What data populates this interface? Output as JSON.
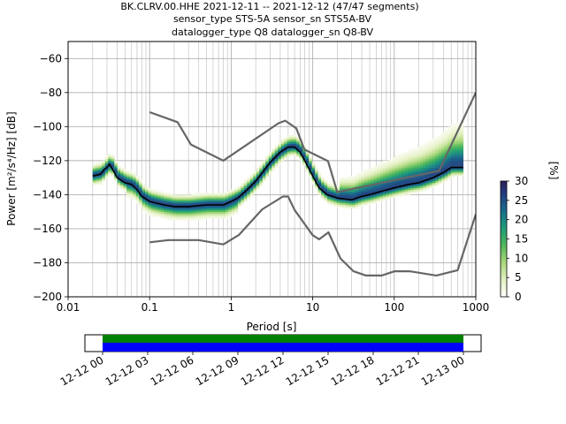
{
  "title_lines": [
    "BK.CLRV.00.HHE   2021-12-11 -- 2021-12-12  (47/47 segments)",
    "sensor_type STS-5A sensor_sn STS5A-BV",
    "datalogger_type Q8 datalogger_sn Q8-BV"
  ],
  "chart_data": {
    "type": "heatmap",
    "xlabel": "Period [s]",
    "ylabel": "Power [m²/s⁴/Hz] [dB]",
    "x_scale": "log",
    "xlim": [
      0.01,
      1000
    ],
    "ylim": [
      -200,
      -50
    ],
    "x_ticks": [
      0.01,
      0.1,
      1,
      10,
      100,
      1000
    ],
    "x_tick_labels": [
      "0.01",
      "0.1",
      "1",
      "10",
      "100",
      "1000"
    ],
    "y_ticks": [
      -200,
      -180,
      -160,
      -140,
      -120,
      -100,
      -80,
      -60
    ],
    "y_tick_labels": [
      "−200",
      "−180",
      "−160",
      "−140",
      "−120",
      "−100",
      "−80",
      "−60"
    ],
    "grid": true,
    "colorbar": {
      "label": "[%]",
      "range": [
        0,
        30
      ],
      "ticks": [
        0,
        5,
        10,
        15,
        20,
        25,
        30
      ],
      "tick_labels": [
        "0",
        "5",
        "10",
        "15",
        "20",
        "25",
        "30"
      ],
      "colormap": "white-green-teal-navy"
    },
    "mean_curve": {
      "color": "#000000",
      "points": [
        [
          0.02,
          -129
        ],
        [
          0.025,
          -128
        ],
        [
          0.028,
          -125
        ],
        [
          0.03,
          -124
        ],
        [
          0.032,
          -122
        ],
        [
          0.035,
          -125
        ],
        [
          0.04,
          -130
        ],
        [
          0.05,
          -133
        ],
        [
          0.06,
          -134
        ],
        [
          0.07,
          -137
        ],
        [
          0.08,
          -141
        ],
        [
          0.1,
          -144
        ],
        [
          0.15,
          -146
        ],
        [
          0.2,
          -147
        ],
        [
          0.3,
          -147
        ],
        [
          0.5,
          -146
        ],
        [
          0.8,
          -146
        ],
        [
          1,
          -144
        ],
        [
          1.2,
          -142
        ],
        [
          1.5,
          -138
        ],
        [
          2,
          -132
        ],
        [
          2.5,
          -126
        ],
        [
          3,
          -121
        ],
        [
          4,
          -115
        ],
        [
          5,
          -112
        ],
        [
          6,
          -112
        ],
        [
          7,
          -115
        ],
        [
          8,
          -120
        ],
        [
          10,
          -129
        ],
        [
          12,
          -136
        ],
        [
          15,
          -140
        ],
        [
          20,
          -142
        ],
        [
          30,
          -143
        ],
        [
          40,
          -141
        ],
        [
          50,
          -140
        ],
        [
          70,
          -138
        ],
        [
          100,
          -136
        ],
        [
          150,
          -134
        ],
        [
          200,
          -133
        ],
        [
          300,
          -130
        ],
        [
          400,
          -127
        ],
        [
          500,
          -124
        ],
        [
          700,
          -124
        ]
      ]
    },
    "noise_model_high": {
      "color": "#666666",
      "points": [
        [
          0.1,
          -91.5
        ],
        [
          0.22,
          -97.4
        ],
        [
          0.32,
          -110.5
        ],
        [
          0.8,
          -120
        ],
        [
          3.8,
          -98
        ],
        [
          4.6,
          -96.5
        ],
        [
          6.3,
          -101
        ],
        [
          7.9,
          -113.5
        ],
        [
          15.4,
          -120.3
        ],
        [
          20,
          -138.5
        ],
        [
          354.8,
          -126
        ],
        [
          10000,
          -80
        ]
      ]
    },
    "noise_model_low": {
      "color": "#666666",
      "points": [
        [
          0.1,
          -168
        ],
        [
          0.17,
          -166.7
        ],
        [
          0.4,
          -166.7
        ],
        [
          0.8,
          -169.2
        ],
        [
          1.24,
          -163.7
        ],
        [
          2.4,
          -148.6
        ],
        [
          4.3,
          -141.1
        ],
        [
          5,
          -141.1
        ],
        [
          6,
          -149
        ],
        [
          10,
          -163.8
        ],
        [
          12,
          -166.2
        ],
        [
          15.6,
          -162.1
        ],
        [
          21.9,
          -177.5
        ],
        [
          31.6,
          -185
        ],
        [
          45,
          -187.5
        ],
        [
          70,
          -187.5
        ],
        [
          101,
          -185
        ],
        [
          154,
          -185
        ],
        [
          328,
          -187.5
        ],
        [
          600,
          -184.4
        ],
        [
          10000,
          -151.5
        ]
      ]
    },
    "density_cells": [
      {
        "period": 0.025,
        "db": -125,
        "percent": 10
      },
      {
        "period": 0.03,
        "db": -120,
        "percent": 8
      },
      {
        "period": 0.1,
        "db": -145,
        "percent": 20
      },
      {
        "period": 1,
        "db": -145,
        "percent": 22
      },
      {
        "period": 5,
        "db": -112,
        "percent": 25
      },
      {
        "period": 20,
        "db": -145,
        "percent": 28
      },
      {
        "period": 100,
        "db": -137,
        "percent": 24
      },
      {
        "period": 500,
        "db": -126,
        "percent": 26
      }
    ]
  },
  "timeline": {
    "tick_labels": [
      "12-12 00",
      "12-12 03",
      "12-12 06",
      "12-12 09",
      "12-12 12",
      "12-12 15",
      "12-12 18",
      "12-12 21",
      "12-13 00"
    ],
    "bar_colors": {
      "available": "#008000",
      "used": "#0000ff"
    }
  }
}
